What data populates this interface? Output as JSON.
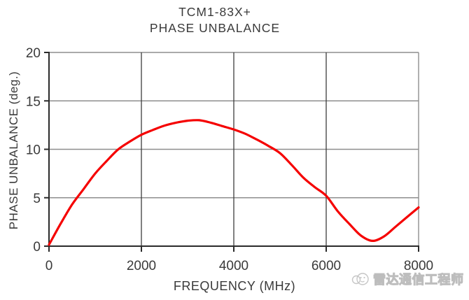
{
  "figure": {
    "title_line1": "TCM1-83X+",
    "title_line2": "PHASE UNBALANCE"
  },
  "watermark": {
    "text": "雷达通信工程师",
    "logo_icon": "radar-communication-engineer-logo"
  },
  "colors": {
    "curve": "#f50000",
    "axis": "#2b2b2b",
    "frame_and_hgrid": "#8e8e8e",
    "vgrid": "#3d3d3d",
    "text": "#3a3a3a",
    "watermark": "#bdbdbd"
  },
  "chart_data": {
    "type": "line",
    "title": "TCM1-83X+ PHASE UNBALANCE",
    "xlabel": "FREQUENCY (MHz)",
    "ylabel": "PHASE UNBALANCE (deg.)",
    "xlim": [
      0,
      8000
    ],
    "ylim": [
      0,
      20
    ],
    "xticks": [
      0,
      2000,
      4000,
      6000,
      8000
    ],
    "yticks": [
      0,
      5,
      10,
      15,
      20
    ],
    "grid": true,
    "legend": "none",
    "series": [
      {
        "name": "phase unbalance",
        "color": "#f50000",
        "x": [
          0,
          250,
          500,
          750,
          1000,
          1250,
          1500,
          1750,
          2000,
          2250,
          2500,
          2750,
          3000,
          3250,
          3500,
          3750,
          4000,
          4250,
          4500,
          4750,
          5000,
          5250,
          5500,
          5750,
          6000,
          6250,
          6500,
          6750,
          7000,
          7250,
          7500,
          7750,
          8000
        ],
        "y": [
          0.15,
          2.3,
          4.3,
          5.9,
          7.5,
          8.8,
          10.0,
          10.8,
          11.5,
          12.0,
          12.45,
          12.75,
          12.95,
          13.0,
          12.75,
          12.4,
          12.05,
          11.6,
          11.0,
          10.35,
          9.6,
          8.4,
          7.1,
          6.1,
          5.2,
          3.6,
          2.3,
          1.1,
          0.55,
          1.0,
          2.0,
          3.0,
          4.0
        ]
      }
    ]
  }
}
